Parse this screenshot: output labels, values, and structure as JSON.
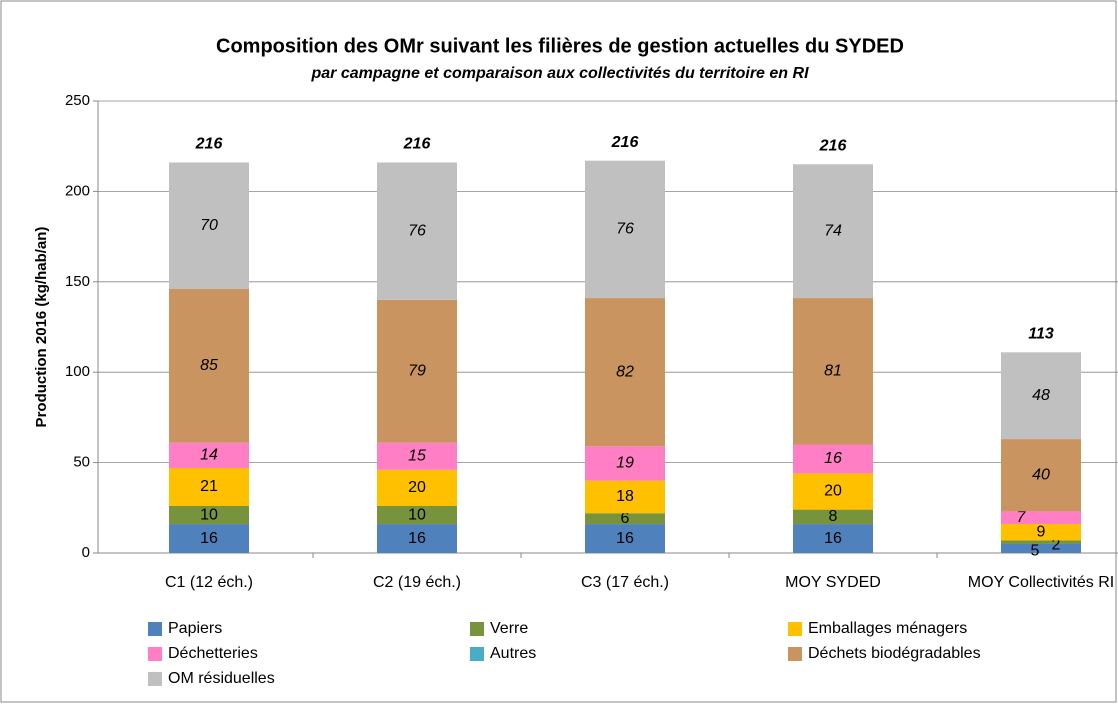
{
  "chart_data": {
    "type": "stacked_bar",
    "title": "Composition des OMr suivant les filières de gestion actuelles du SYDED",
    "subtitle": "par campagne et comparaison aux collectivités du territoire en RI",
    "y_label": "Production 2016 (kg/hab/an)",
    "categories": [
      "C1 (12 éch.)",
      "C2 (19 éch.)",
      "C3 (17 éch.)",
      "MOY SYDED",
      "MOY Collectivités RI"
    ],
    "series": [
      {
        "name": "Papiers",
        "color": "#4f81bd",
        "label_color": "#ffffff",
        "values": [
          16,
          16,
          16,
          16,
          5
        ]
      },
      {
        "name": "Verre",
        "color": "#77933c",
        "label_color": "#ffffff",
        "values": [
          10,
          10,
          6,
          8,
          2
        ]
      },
      {
        "name": "Emballages ménagers",
        "color": "#ffc000",
        "label_color": "#000000",
        "values": [
          21,
          20,
          18,
          20,
          9
        ]
      },
      {
        "name": "Déchetteries",
        "color": "#ff7ec4",
        "label_color": "#000000",
        "values": [
          14,
          15,
          19,
          16,
          7
        ]
      },
      {
        "name": "Autres",
        "color": "#4bacc6",
        "label_color": "#000000",
        "values": [
          0,
          0,
          0,
          0,
          0
        ]
      },
      {
        "name": "Déchets biodégradables",
        "color": "#c9945f",
        "label_color": "#000000",
        "values": [
          85,
          79,
          82,
          81,
          40
        ]
      },
      {
        "name": "OM résiduelles",
        "color": "#c0c0c0",
        "label_color": "#000000",
        "values": [
          70,
          76,
          76,
          74,
          48
        ]
      }
    ],
    "totals": [
      216,
      216,
      216,
      216,
      113
    ],
    "ylim": [
      0,
      250
    ],
    "yticks": [
      0,
      50,
      100,
      150,
      200,
      250
    ],
    "grid": true
  }
}
